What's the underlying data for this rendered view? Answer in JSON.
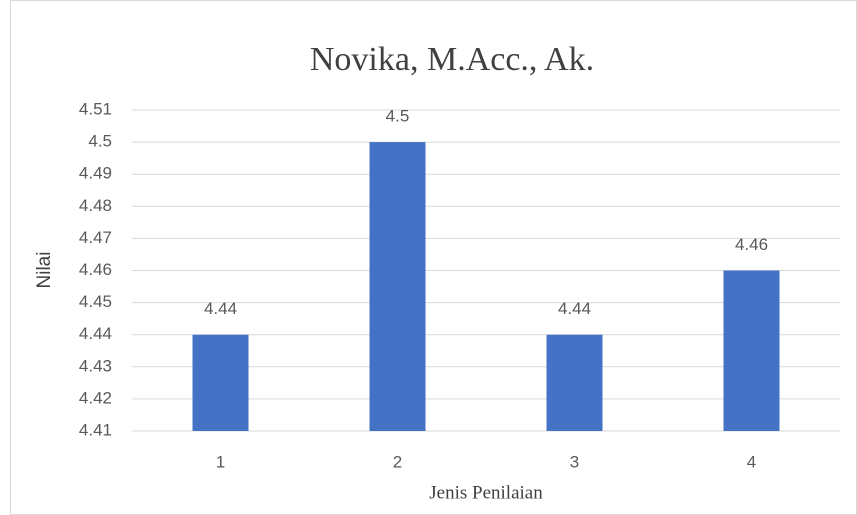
{
  "chart_data": {
    "type": "bar",
    "title": "Novika, M.Acc., Ak.",
    "x_label": "Jenis Penilaian",
    "y_label": "Nilai",
    "categories": [
      "1",
      "2",
      "3",
      "4"
    ],
    "values": [
      4.44,
      4.5,
      4.44,
      4.46
    ],
    "color": "#4472c4",
    "ylim": [
      4.41,
      4.51
    ],
    "yticks": [
      4.41,
      4.42,
      4.43,
      4.44,
      4.45,
      4.46,
      4.47,
      4.48,
      4.49,
      4.5,
      4.51
    ],
    "grid": true
  }
}
